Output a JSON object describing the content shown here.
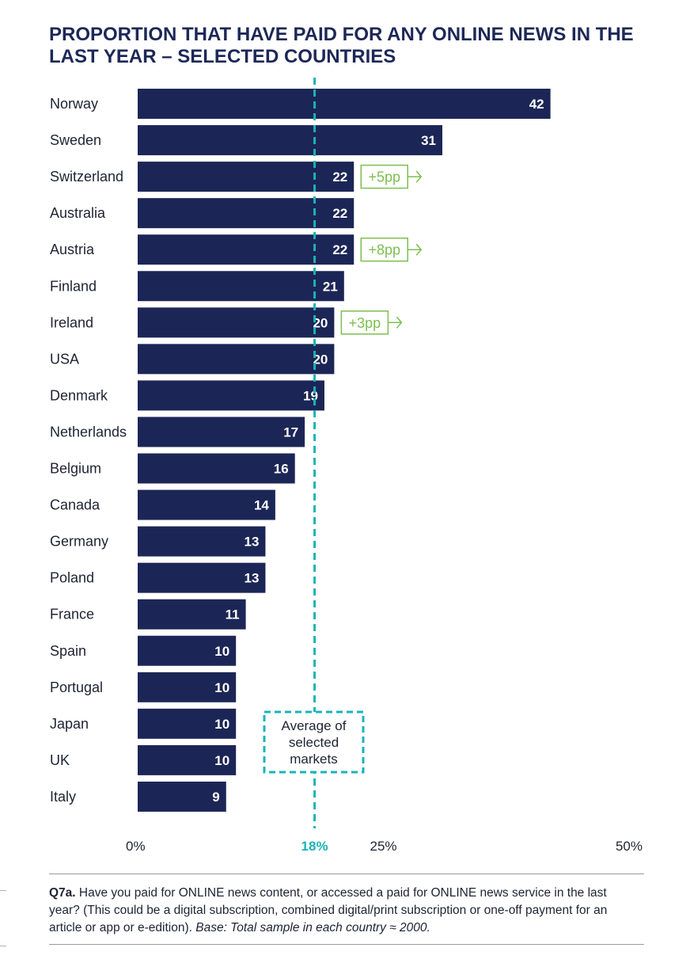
{
  "title": "PROPORTION THAT HAVE PAID FOR ANY ONLINE NEWS IN THE LAST YEAR – SELECTED COUNTRIES",
  "colors": {
    "bar": "#1c2656",
    "average_line": "#1bb3b8",
    "change": "#7dbf50",
    "title": "#1d2858",
    "text": "#1f2333"
  },
  "chart_data": {
    "type": "bar",
    "orientation": "horizontal",
    "categories": [
      "Norway",
      "Sweden",
      "Switzerland",
      "Australia",
      "Austria",
      "Finland",
      "Ireland",
      "USA",
      "Denmark",
      "Netherlands",
      "Belgium",
      "Canada",
      "Germany",
      "Poland",
      "France",
      "Spain",
      "Portugal",
      "Japan",
      "UK",
      "Italy"
    ],
    "values": [
      42,
      31,
      22,
      22,
      22,
      21,
      20,
      20,
      19,
      17,
      16,
      14,
      13,
      13,
      11,
      10,
      10,
      10,
      10,
      9
    ],
    "changes": [
      {
        "country": "Switzerland",
        "label": "+5pp"
      },
      {
        "country": "Austria",
        "label": "+8pp"
      },
      {
        "country": "Ireland",
        "label": "+3pp"
      }
    ],
    "average": {
      "value": 18,
      "tick_label": "18%",
      "label": "Average of selected markets"
    },
    "xticks": [
      {
        "value": 0,
        "label": "0%"
      },
      {
        "value": 25,
        "label": "25%"
      },
      {
        "value": 50,
        "label": "50%"
      }
    ],
    "xlim": [
      0,
      50
    ],
    "legend": "none",
    "grid": false
  },
  "footnote": {
    "question_id": "Q7a.",
    "question": " Have you paid for ONLINE news content, or accessed a paid for ONLINE news service in the last year? (This could be a digital subscription, combined digital/print subscription or one-off payment for an article or app or e-edition). ",
    "base": "Base: Total sample in each country ≈ 2000."
  }
}
